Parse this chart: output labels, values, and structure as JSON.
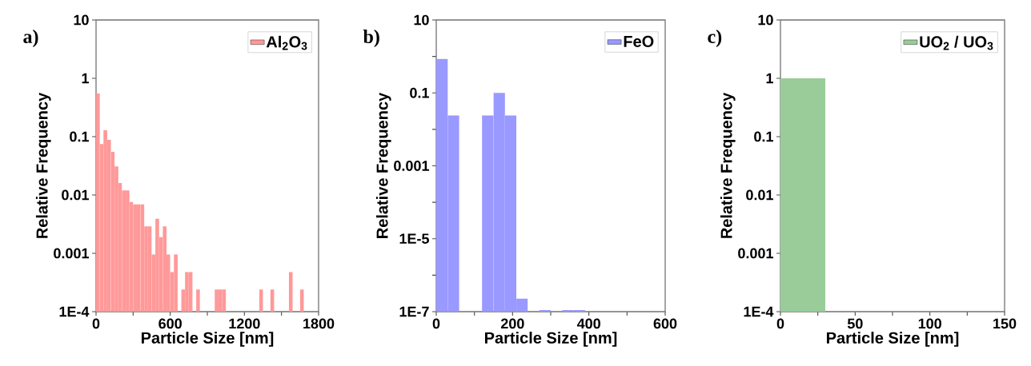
{
  "chart_data": [
    {
      "type": "histogram",
      "annotations": [
        "a)"
      ],
      "xlabel": "Particle Size [nm]",
      "ylabel": "Relative Frequency",
      "log": "y",
      "legend": "top right",
      "bins": [
        0,
        30,
        60,
        90,
        120,
        150,
        180,
        210,
        240,
        270,
        300,
        330,
        360,
        390,
        420,
        450,
        480,
        510,
        540,
        570,
        600,
        630,
        660,
        690,
        720,
        750,
        780,
        810,
        840,
        870,
        900,
        930,
        960,
        990,
        1020,
        1050,
        1080,
        1110,
        1140,
        1170,
        1200,
        1230,
        1260,
        1290,
        1320,
        1350,
        1380,
        1410,
        1440,
        1470,
        1500,
        1530,
        1560,
        1590,
        1620,
        1650,
        1680
      ],
      "series": [
        {
          "name": "Al$_{2}$O$_{3}$",
          "color": "#ff9999",
          "values": [
            0.55,
            0.075,
            0.13,
            0.089,
            0.055,
            0.031,
            0.016,
            0.012,
            0.012,
            0.0076,
            0.0069,
            0.0069,
            0.0069,
            0.0029,
            0.0029,
            0.00096,
            0.0039,
            0.0019,
            0.0029,
            0.00096,
            0.00048,
            0.00096,
            null,
            0.00024,
            0.00048,
            0.00048,
            null,
            0.00024,
            null,
            null,
            null,
            null,
            0.00024,
            0.00024,
            0.00024,
            null,
            null,
            null,
            null,
            null,
            null,
            null,
            null,
            null,
            0.00024,
            null,
            null,
            0.00024,
            null,
            null,
            null,
            null,
            0.00048,
            null,
            null,
            0.00024
          ]
        }
      ],
      "xlim": [
        0,
        1800
      ],
      "xticks": [
        0,
        {
          "value": 300,
          "label": null
        },
        600,
        {
          "value": 900,
          "label": null
        },
        1200,
        {
          "value": 1500,
          "label": null
        },
        1800
      ],
      "ylim": [
        0.0001,
        10
      ],
      "yticks": [
        {
          "value": 0.0001,
          "label": "1E-4"
        },
        0.001,
        0.01,
        0.1,
        1,
        10
      ]
    },
    {
      "type": "histogram",
      "annotations": [
        "b)"
      ],
      "xlabel": "Particle Size [nm]",
      "ylabel": "Relative Frequency",
      "log": "y",
      "legend": "top right",
      "bins": [
        0,
        30,
        60,
        90,
        120,
        150,
        180,
        210,
        240,
        270,
        300,
        330,
        360,
        390
      ],
      "series": [
        {
          "name": "FeO",
          "color": "#9999ff",
          "values": [
            0.85,
            0.024,
            null,
            null,
            0.024,
            0.1,
            0.024,
            2.3e-07,
            null,
            1.1e-07,
            null,
            1.1e-07,
            1.1e-07
          ]
        }
      ],
      "xlim": [
        0,
        600
      ],
      "xticks": [
        0,
        {
          "value": 100,
          "label": null
        },
        200,
        {
          "value": 300,
          "label": null
        },
        400,
        {
          "value": 500,
          "label": null
        },
        600
      ],
      "ylim": [
        1e-07,
        10
      ],
      "yticks": [
        {
          "value": 1e-07,
          "label": "1E-7"
        },
        {
          "value": 1e-06,
          "label": null
        },
        {
          "value": 1e-05,
          "label": "1E-5"
        },
        {
          "value": 0.0001,
          "label": null
        },
        0.001,
        {
          "value": 0.01,
          "label": null
        },
        0.1,
        {
          "value": 1,
          "label": null
        },
        10
      ]
    },
    {
      "type": "histogram",
      "annotations": [
        "c)"
      ],
      "xlabel": "Particle Size [nm]",
      "ylabel": "Relative Frequency",
      "log": "y",
      "legend": "top right",
      "bins": [
        0,
        30
      ],
      "series": [
        {
          "name": "UO$_{2}$ / UO$_{3}$",
          "color": "#99cc99",
          "values": [
            1
          ]
        }
      ],
      "xlim": [
        0,
        150
      ],
      "xticks": [
        0,
        {
          "value": 25,
          "label": null
        },
        50,
        {
          "value": 75,
          "label": null
        },
        100,
        {
          "value": 125,
          "label": null
        },
        150
      ],
      "ylim": [
        0.0001,
        10
      ],
      "yticks": [
        {
          "value": 0.0001,
          "label": "1E-4"
        },
        0.001,
        0.01,
        0.1,
        1,
        10
      ]
    }
  ]
}
